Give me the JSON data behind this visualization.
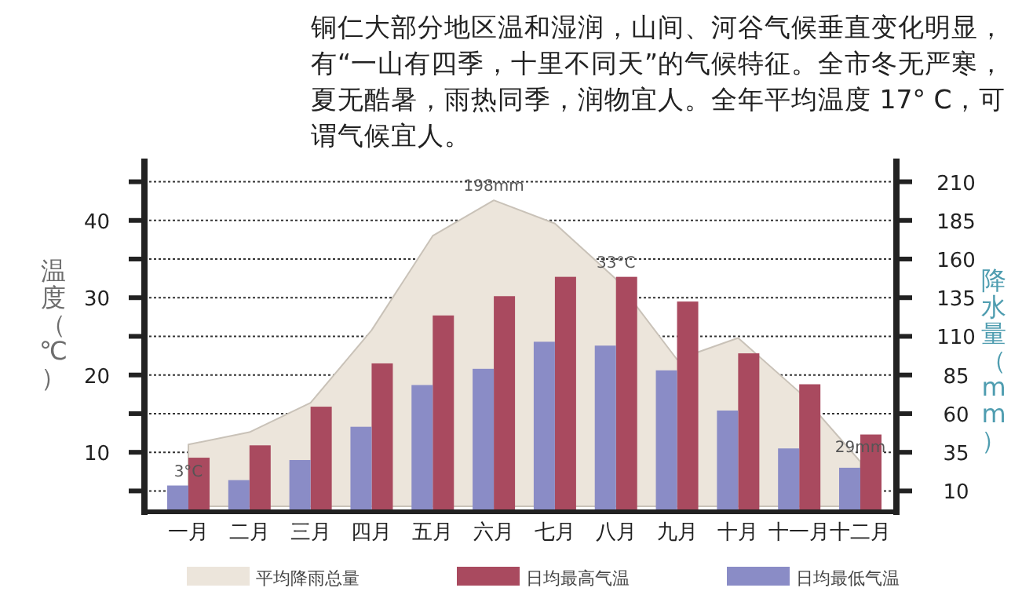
{
  "chart_data": {
    "type": "bar",
    "title": "铜仁大部分地区温和湿润，山间、河谷气候垂直变化明显，有“一山有四季，十里不同天”的气候特征。全市冬无严寒，夏无酷暑，雨热同季，润物宜人。全年平均温度 17° C，可谓气候宜人。",
    "ylabel": "温度（℃）",
    "y2label": "降水量（mm）",
    "categories": [
      "一月",
      "二月",
      "三月",
      "四月",
      "五月",
      "六月",
      "七月",
      "八月",
      "九月",
      "十月",
      "十一月",
      "十二月"
    ],
    "series": [
      {
        "name": "平均降雨总量",
        "type": "area",
        "axis": "y2",
        "color": "#ece5db",
        "values": [
          40,
          48,
          67,
          114,
          175,
          198,
          183,
          147,
          95,
          109,
          74,
          29
        ]
      },
      {
        "name": "日均最高气温",
        "color": "#a94a5f",
        "values": [
          9.3,
          10.9,
          15.9,
          21.5,
          27.7,
          30.2,
          32.7,
          32.7,
          29.5,
          22.8,
          18.8,
          12.3
        ]
      },
      {
        "name": "日均最低气温",
        "color": "#8a8cc6",
        "values": [
          5.7,
          6.4,
          9.0,
          13.3,
          18.7,
          20.8,
          24.3,
          23.8,
          20.6,
          15.4,
          10.5,
          8.0
        ]
      }
    ],
    "ylim": [
      2.3,
      48
    ],
    "yticks": [
      {
        "value": 5,
        "label": null
      },
      10,
      {
        "value": 15,
        "label": null
      },
      20,
      {
        "value": 25,
        "label": null
      },
      30,
      {
        "value": 35,
        "label": null
      },
      40,
      {
        "value": 45,
        "label": null
      }
    ],
    "y2lim": [
      -3.5,
      225
    ],
    "y2ticks": [
      10,
      35,
      60,
      85,
      110,
      135,
      160,
      185,
      210
    ],
    "grid": "y",
    "legend": "bottom",
    "annotations": [
      {
        "text": "3°C",
        "x": "一月",
        "y": 5.7
      },
      {
        "text": "33°C",
        "x": "八月",
        "y": 32.7
      },
      {
        "text": "198mm",
        "x": "六月",
        "y": 42.6
      },
      {
        "text": "29mm",
        "x": "十二月",
        "y": 8.8
      }
    ]
  }
}
